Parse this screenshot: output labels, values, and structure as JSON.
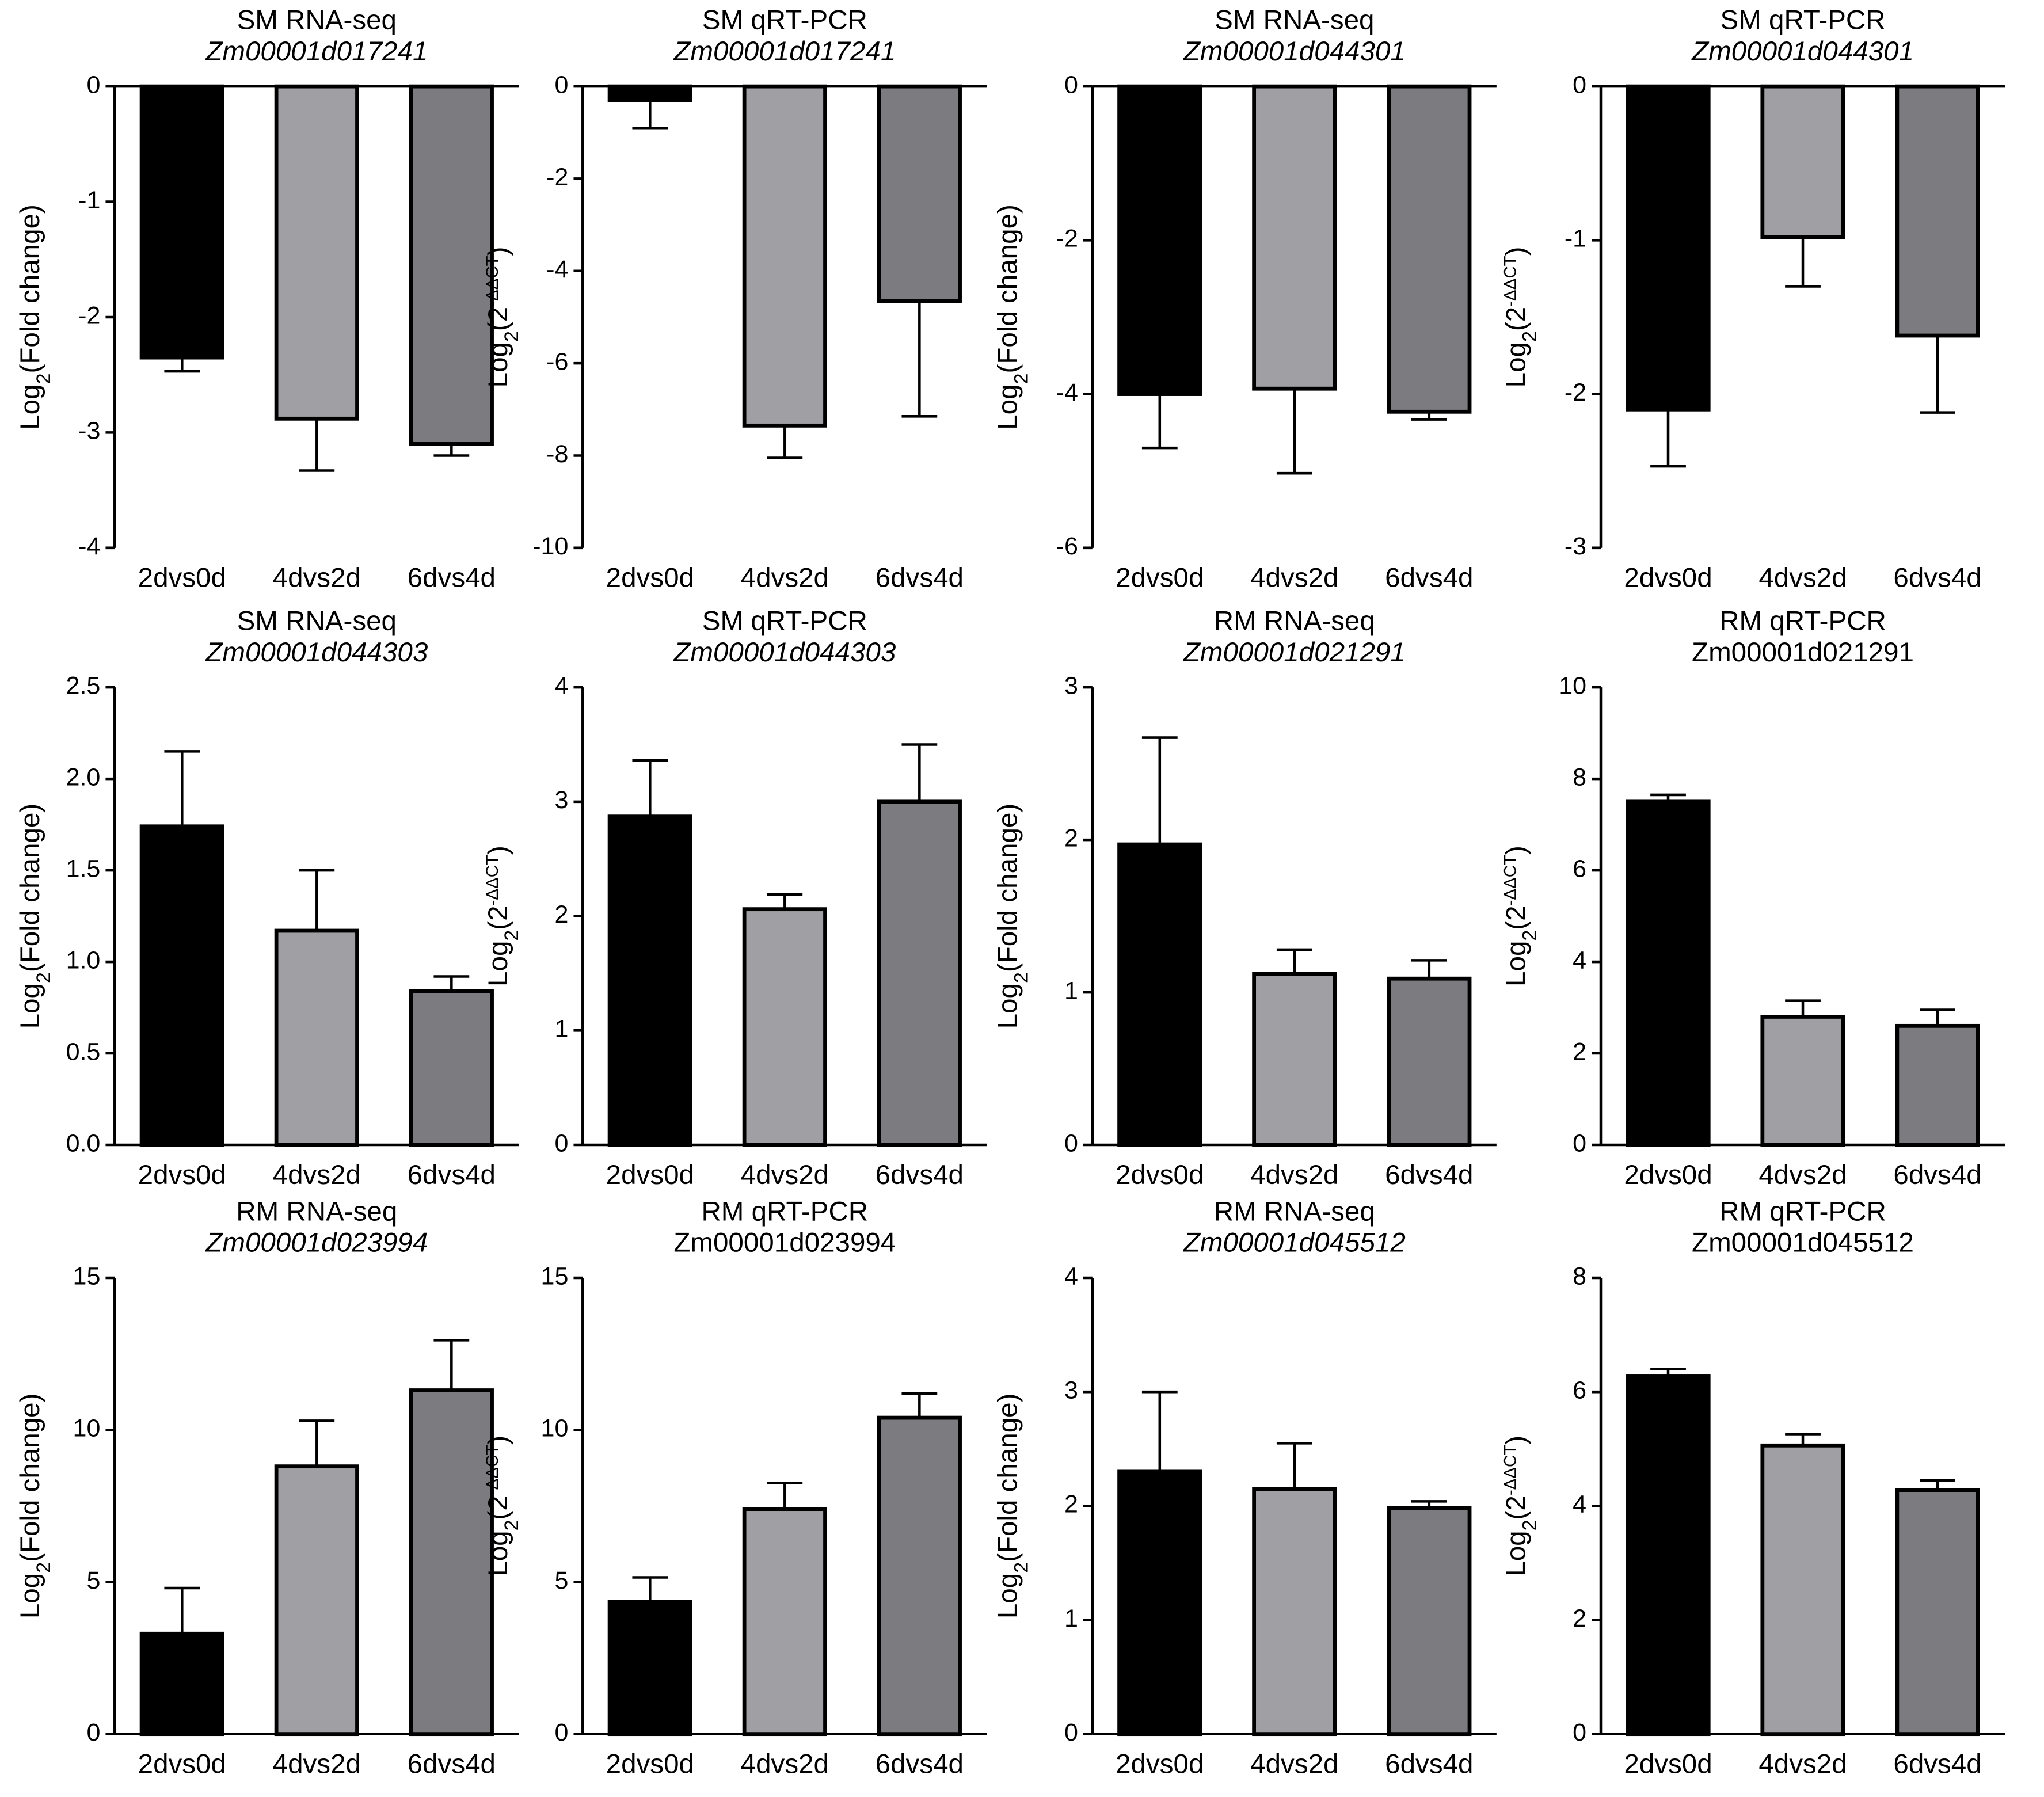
{
  "chart_data": [
    {
      "type": "bar",
      "title": "SM RNA-seq",
      "subtitle": "Zm00001d017241",
      "subtitle_italic": true,
      "ylabel": [
        {
          "text": "Log",
          "style": "normal"
        },
        {
          "text": "2",
          "style": "sub"
        },
        {
          "text": "(Fold change)",
          "style": "normal"
        }
      ],
      "categories": [
        "2dvs0d",
        "4dvs2d",
        "6dvs4d"
      ],
      "values": [
        -2.35,
        -2.88,
        -3.1
      ],
      "errors": [
        0.12,
        0.45,
        0.1
      ],
      "colors": [
        "#000000",
        "#a0a0a4",
        "#7c7c80"
      ],
      "ylim": [
        -4,
        0
      ],
      "yticks": [
        0,
        -1,
        -2,
        -3,
        -4
      ]
    },
    {
      "type": "bar",
      "title": "SM qRT-PCR",
      "subtitle": "Zm00001d017241",
      "subtitle_italic": true,
      "ylabel": [
        {
          "text": "Log",
          "style": "normal"
        },
        {
          "text": "2",
          "style": "sub"
        },
        {
          "text": "(2",
          "style": "normal"
        },
        {
          "text": "-ΔΔCT",
          "style": "sup"
        },
        {
          "text": ")",
          "style": "normal"
        }
      ],
      "categories": [
        "2dvs0d",
        "4dvs2d",
        "6dvs4d"
      ],
      "values": [
        -0.3,
        -7.35,
        -4.65
      ],
      "errors": [
        0.6,
        0.7,
        2.5
      ],
      "colors": [
        "#000000",
        "#a0a0a4",
        "#7c7c80"
      ],
      "ylim": [
        -10,
        0
      ],
      "yticks": [
        0,
        -2,
        -4,
        -6,
        -8,
        -10
      ]
    },
    {
      "type": "bar",
      "title": "SM RNA-seq",
      "subtitle": "Zm00001d044301",
      "subtitle_italic": true,
      "ylabel": [
        {
          "text": "Log",
          "style": "normal"
        },
        {
          "text": "2",
          "style": "sub"
        },
        {
          "text": "(Fold change)",
          "style": "normal"
        }
      ],
      "categories": [
        "2dvs0d",
        "4dvs2d",
        "6dvs4d"
      ],
      "values": [
        -4.0,
        -3.93,
        -4.23
      ],
      "errors": [
        0.7,
        1.1,
        0.1
      ],
      "colors": [
        "#000000",
        "#a0a0a4",
        "#7c7c80"
      ],
      "ylim": [
        -6,
        0
      ],
      "yticks": [
        0,
        -2,
        -4,
        -6
      ]
    },
    {
      "type": "bar",
      "title": "SM qRT-PCR",
      "subtitle": "Zm00001d044301",
      "subtitle_italic": true,
      "ylabel": [
        {
          "text": "Log",
          "style": "normal"
        },
        {
          "text": "2",
          "style": "sub"
        },
        {
          "text": "(2",
          "style": "normal"
        },
        {
          "text": "-ΔΔCT",
          "style": "sup"
        },
        {
          "text": ")",
          "style": "normal"
        }
      ],
      "categories": [
        "2dvs0d",
        "4dvs2d",
        "6dvs4d"
      ],
      "values": [
        -2.1,
        -0.98,
        -1.62
      ],
      "errors": [
        0.37,
        0.32,
        0.5
      ],
      "colors": [
        "#000000",
        "#a0a0a4",
        "#7c7c80"
      ],
      "ylim": [
        -3,
        0
      ],
      "yticks": [
        0,
        -1,
        -2,
        -3
      ]
    },
    {
      "type": "bar",
      "title": "SM RNA-seq",
      "subtitle": "Zm00001d044303",
      "subtitle_italic": true,
      "ylabel": [
        {
          "text": "Log",
          "style": "normal"
        },
        {
          "text": "2",
          "style": "sub"
        },
        {
          "text": "(Fold change)",
          "style": "normal"
        }
      ],
      "categories": [
        "2dvs0d",
        "4dvs2d",
        "6dvs4d"
      ],
      "values": [
        1.74,
        1.17,
        0.84
      ],
      "errors": [
        0.41,
        0.33,
        0.08
      ],
      "colors": [
        "#000000",
        "#a0a0a4",
        "#7c7c80"
      ],
      "ylim": [
        0,
        2.5
      ],
      "yticks": [
        {
          "value": 0,
          "label": "0.0"
        },
        0.5,
        {
          "value": 1,
          "label": "1.0"
        },
        1.5,
        {
          "value": 2,
          "label": "2.0"
        },
        2.5
      ]
    },
    {
      "type": "bar",
      "title": "SM qRT-PCR",
      "subtitle": "Zm00001d044303",
      "subtitle_italic": true,
      "ylabel": [
        {
          "text": "Log",
          "style": "normal"
        },
        {
          "text": "2",
          "style": "sub"
        },
        {
          "text": "(2",
          "style": "normal"
        },
        {
          "text": "-ΔΔCT",
          "style": "sup"
        },
        {
          "text": ")",
          "style": "normal"
        }
      ],
      "categories": [
        "2dvs0d",
        "4dvs2d",
        "6dvs4d"
      ],
      "values": [
        2.87,
        2.06,
        3.0
      ],
      "errors": [
        0.49,
        0.13,
        0.5
      ],
      "colors": [
        "#000000",
        "#a0a0a4",
        "#7c7c80"
      ],
      "ylim": [
        0,
        4
      ],
      "yticks": [
        0,
        1,
        2,
        3,
        4
      ]
    },
    {
      "type": "bar",
      "title": "RM RNA-seq",
      "subtitle": "Zm00001d021291",
      "subtitle_italic": true,
      "ylabel": [
        {
          "text": "Log",
          "style": "normal"
        },
        {
          "text": "2",
          "style": "sub"
        },
        {
          "text": "(Fold change)",
          "style": "normal"
        }
      ],
      "categories": [
        "2dvs0d",
        "4dvs2d",
        "6dvs4d"
      ],
      "values": [
        1.97,
        1.12,
        1.09
      ],
      "errors": [
        0.7,
        0.16,
        0.12
      ],
      "colors": [
        "#000000",
        "#a0a0a4",
        "#7c7c80"
      ],
      "ylim": [
        0,
        3
      ],
      "yticks": [
        0,
        1,
        2,
        3
      ]
    },
    {
      "type": "bar",
      "title": "RM qRT-PCR",
      "subtitle": "Zm00001d021291",
      "subtitle_italic": false,
      "ylabel": [
        {
          "text": "Log",
          "style": "normal"
        },
        {
          "text": "2",
          "style": "sub"
        },
        {
          "text": "(2",
          "style": "normal"
        },
        {
          "text": "-ΔΔCT",
          "style": "sup"
        },
        {
          "text": ")",
          "style": "normal"
        }
      ],
      "categories": [
        "2dvs0d",
        "4dvs2d",
        "6dvs4d"
      ],
      "values": [
        7.5,
        2.8,
        2.6
      ],
      "errors": [
        0.15,
        0.35,
        0.35
      ],
      "colors": [
        "#000000",
        "#a0a0a4",
        "#7c7c80"
      ],
      "ylim": [
        0,
        10
      ],
      "yticks": [
        0,
        2,
        4,
        6,
        8,
        10
      ]
    },
    {
      "type": "bar",
      "title": "RM RNA-seq",
      "subtitle": "Zm00001d023994",
      "subtitle_italic": true,
      "ylabel": [
        {
          "text": "Log",
          "style": "normal"
        },
        {
          "text": "2",
          "style": "sub"
        },
        {
          "text": "(Fold change)",
          "style": "normal"
        }
      ],
      "categories": [
        "2dvs0d",
        "4dvs2d",
        "6dvs4d"
      ],
      "values": [
        3.3,
        8.8,
        11.3
      ],
      "errors": [
        1.5,
        1.5,
        1.65
      ],
      "colors": [
        "#000000",
        "#a0a0a4",
        "#7c7c80"
      ],
      "ylim": [
        0,
        15
      ],
      "yticks": [
        0,
        5,
        10,
        15
      ]
    },
    {
      "type": "bar",
      "title": "RM qRT-PCR",
      "subtitle": "Zm00001d023994",
      "subtitle_italic": false,
      "ylabel": [
        {
          "text": "Log",
          "style": "normal"
        },
        {
          "text": "2",
          "style": "sub"
        },
        {
          "text": "(2",
          "style": "normal"
        },
        {
          "text": "-ΔΔCT",
          "style": "sup"
        },
        {
          "text": ")",
          "style": "normal"
        }
      ],
      "categories": [
        "2dvs0d",
        "4dvs2d",
        "6dvs4d"
      ],
      "values": [
        4.35,
        7.4,
        10.4
      ],
      "errors": [
        0.8,
        0.85,
        0.8
      ],
      "colors": [
        "#000000",
        "#a0a0a4",
        "#7c7c80"
      ],
      "ylim": [
        0,
        15
      ],
      "yticks": [
        0,
        5,
        10,
        15
      ]
    },
    {
      "type": "bar",
      "title": "RM RNA-seq",
      "subtitle": "Zm00001d045512",
      "subtitle_italic": true,
      "ylabel": [
        {
          "text": "Log",
          "style": "normal"
        },
        {
          "text": "2",
          "style": "sub"
        },
        {
          "text": "(Fold change)",
          "style": "normal"
        }
      ],
      "categories": [
        "2dvs0d",
        "4dvs2d",
        "6dvs4d"
      ],
      "values": [
        2.3,
        2.15,
        1.98
      ],
      "errors": [
        0.7,
        0.4,
        0.06
      ],
      "colors": [
        "#000000",
        "#a0a0a4",
        "#7c7c80"
      ],
      "ylim": [
        0,
        4
      ],
      "yticks": [
        0,
        1,
        2,
        3,
        4
      ]
    },
    {
      "type": "bar",
      "title": "RM qRT-PCR",
      "subtitle": "Zm00001d045512",
      "subtitle_italic": false,
      "ylabel": [
        {
          "text": "Log",
          "style": "normal"
        },
        {
          "text": "2",
          "style": "sub"
        },
        {
          "text": "(2",
          "style": "normal"
        },
        {
          "text": "-ΔΔCT",
          "style": "sup"
        },
        {
          "text": ")",
          "style": "normal"
        }
      ],
      "categories": [
        "2dvs0d",
        "4dvs2d",
        "6dvs4d"
      ],
      "values": [
        6.28,
        5.06,
        4.28
      ],
      "errors": [
        0.12,
        0.2,
        0.17
      ],
      "colors": [
        "#000000",
        "#a0a0a4",
        "#7c7c80"
      ],
      "ylim": [
        0,
        8
      ],
      "yticks": [
        0,
        2,
        4,
        6,
        8
      ]
    }
  ]
}
